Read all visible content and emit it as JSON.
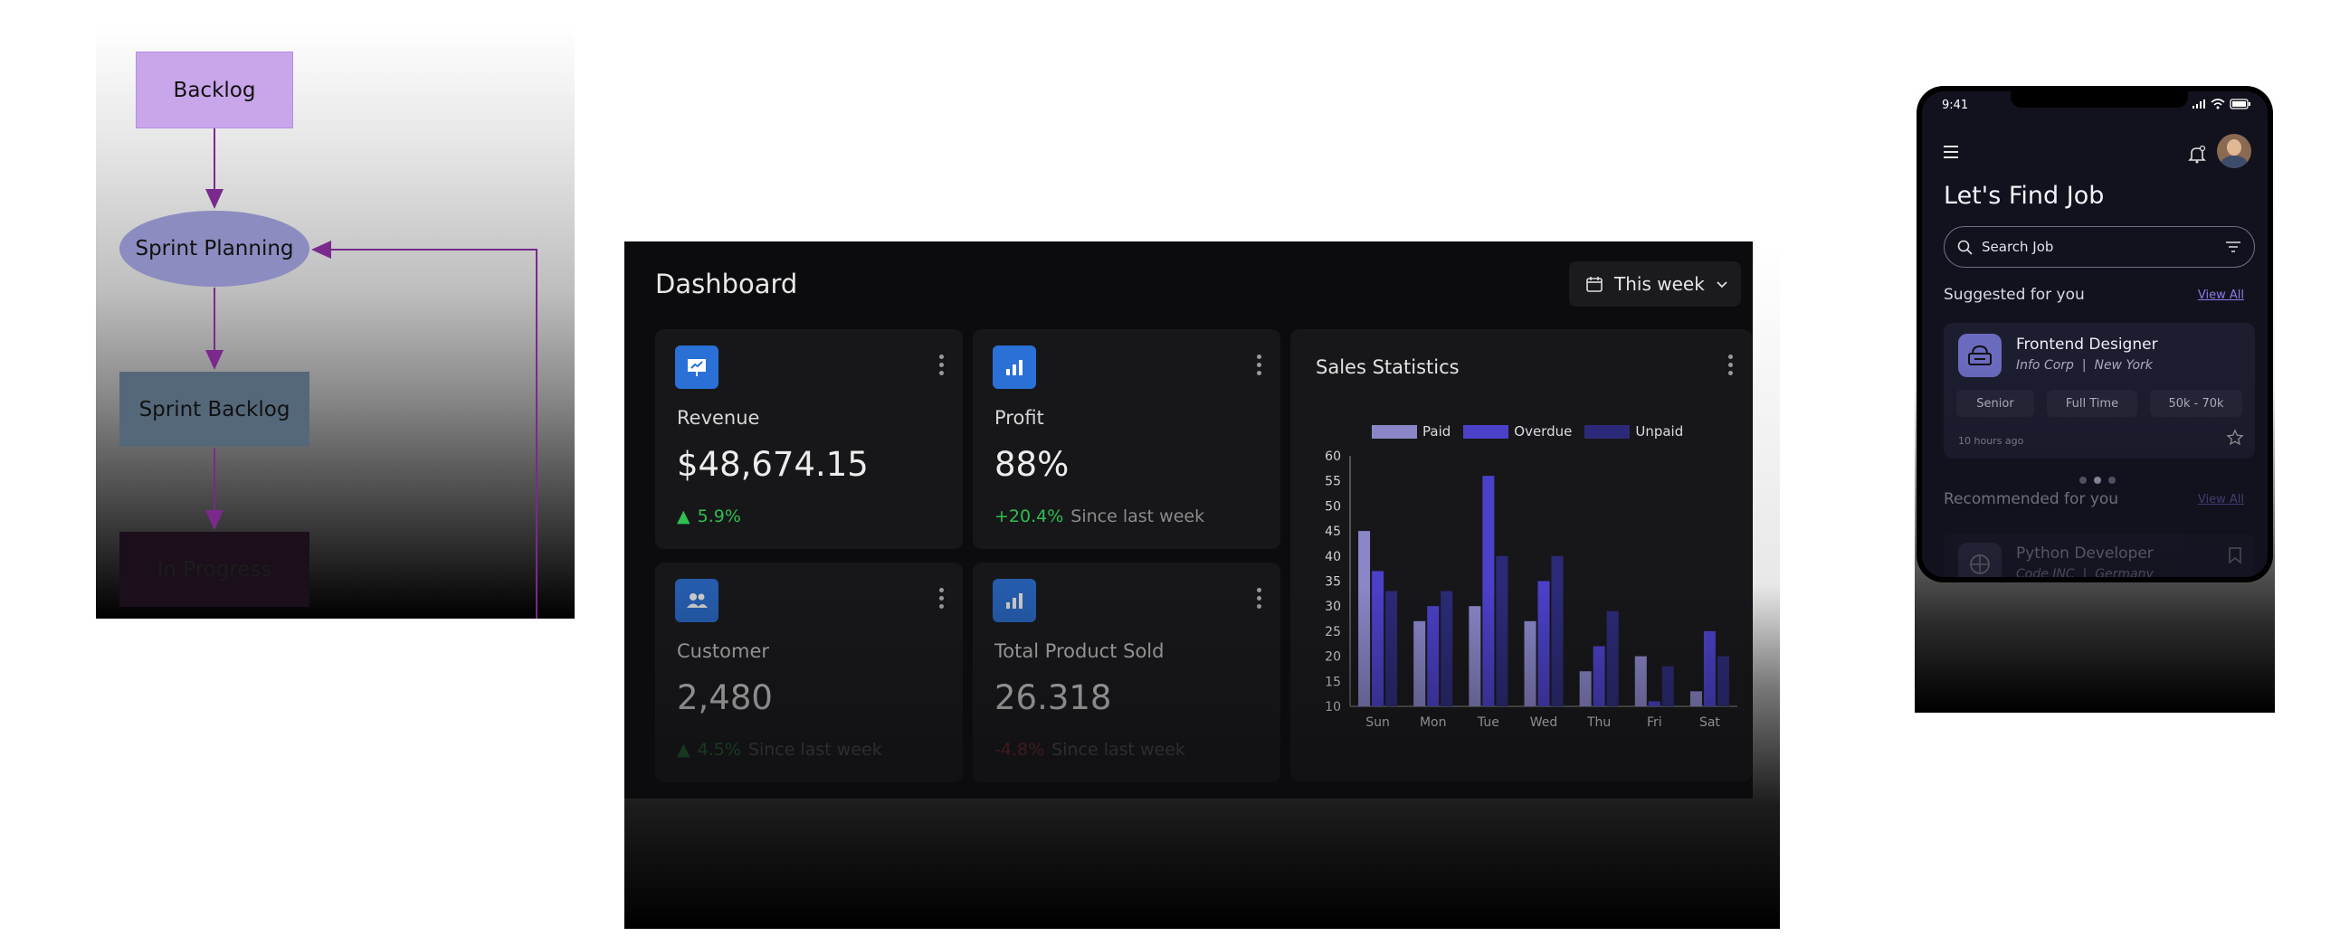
{
  "flowchart": {
    "nodes": [
      {
        "label": "Backlog",
        "shape": "rectangle",
        "color": "#c9a6ea"
      },
      {
        "label": "Sprint Planning",
        "shape": "ellipse",
        "color": "#8c8cc0"
      },
      {
        "label": "Sprint Backlog",
        "shape": "rectangle",
        "color": "#55687a"
      },
      {
        "label": "In Progress",
        "shape": "rectangle",
        "color": "#1a0f1a"
      }
    ],
    "edges": [
      {
        "from": "Backlog",
        "to": "Sprint Planning"
      },
      {
        "from": "Sprint Planning",
        "to": "Sprint Backlog"
      },
      {
        "from": "Sprint Backlog",
        "to": "In Progress"
      },
      {
        "from": "In Progress",
        "to": "Sprint Planning"
      }
    ],
    "edge_color": "#7a2a8c"
  },
  "dashboard": {
    "title": "Dashboard",
    "range_button": "This week",
    "cards": {
      "revenue": {
        "label": "Revenue",
        "value": "$48,674.15",
        "change": "5.9%",
        "trend": "up"
      },
      "profit": {
        "label": "Profit",
        "value": "88%",
        "change": "+20.4%",
        "note": "Since last week",
        "trend": "up"
      },
      "customer": {
        "label": "Customer",
        "value": "2,480",
        "change": "4.5%",
        "note": "Since last week",
        "trend": "up"
      },
      "product": {
        "label": "Total Product Sold",
        "value": "26.318",
        "change": "-4.8%",
        "note": "Since last week",
        "trend": "down"
      }
    },
    "colors": {
      "accent": "#2a70d6",
      "up": "#2fbf4f",
      "down": "#d23a3a"
    }
  },
  "chart_data": {
    "type": "bar",
    "title": "Sales Statistics",
    "categories": [
      "Sun",
      "Mon",
      "Tue",
      "Wed",
      "Thu",
      "Fri",
      "Sat"
    ],
    "series": [
      {
        "name": "Paid",
        "color": "#8a86c8",
        "values": [
          45,
          27,
          30,
          27,
          17,
          20,
          13
        ]
      },
      {
        "name": "Overdue",
        "color": "#4b40c8",
        "values": [
          37,
          30,
          56,
          35,
          22,
          11,
          25
        ]
      },
      {
        "name": "Unpaid",
        "color": "#2c2a78",
        "values": [
          33,
          33,
          40,
          40,
          29,
          18,
          20
        ]
      }
    ],
    "ylim": [
      10,
      60
    ],
    "yticks": [
      "10",
      "15",
      "20",
      "25",
      "30",
      "35",
      "40",
      "45",
      "50",
      "55",
      "60"
    ],
    "legend_position": "top"
  },
  "mobile": {
    "time": "9:41",
    "title": "Let's Find Job",
    "search_placeholder": "Search Job",
    "suggested_heading": "Suggested for you",
    "recommended_heading": "Recommended for you",
    "view_all": "View All",
    "featured_job": {
      "title": "Frontend Designer",
      "company": "Info Corp",
      "location": "New York",
      "tags": [
        "Senior",
        "Full Time",
        "50k - 70k"
      ],
      "posted": "10 hours ago"
    },
    "recommended_job": {
      "title": "Python Developer",
      "company": "Code INC",
      "location": "Germany"
    },
    "pager": {
      "pages": 3,
      "active": 1
    }
  }
}
